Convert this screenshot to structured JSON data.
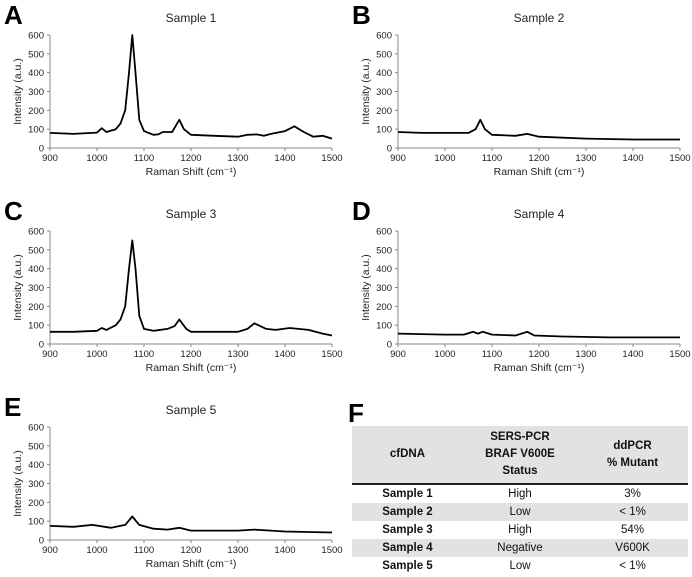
{
  "chart_data": [
    {
      "panel": "A",
      "type": "line",
      "title": "Sample 1",
      "xlabel": "Raman Shift (cm⁻¹)",
      "ylabel": "Intensity (a.u.)",
      "xlim": [
        900,
        1500
      ],
      "ylim": [
        0,
        600
      ],
      "xticks": [
        900,
        1000,
        1100,
        1200,
        1300,
        1400,
        1500
      ],
      "yticks": [
        0,
        100,
        200,
        300,
        400,
        500,
        600
      ],
      "x": [
        900,
        950,
        990,
        1000,
        1010,
        1020,
        1040,
        1050,
        1060,
        1068,
        1075,
        1082,
        1090,
        1100,
        1120,
        1130,
        1140,
        1160,
        1168,
        1175,
        1185,
        1200,
        1250,
        1300,
        1320,
        1340,
        1355,
        1370,
        1400,
        1420,
        1440,
        1460,
        1480,
        1500
      ],
      "y": [
        80,
        75,
        80,
        82,
        105,
        85,
        100,
        130,
        200,
        400,
        600,
        400,
        150,
        90,
        70,
        72,
        85,
        85,
        120,
        150,
        100,
        70,
        65,
        60,
        70,
        72,
        65,
        75,
        90,
        115,
        85,
        60,
        65,
        50
      ]
    },
    {
      "panel": "B",
      "type": "line",
      "title": "Sample 2",
      "xlabel": "Raman Shift (cm⁻¹)",
      "ylabel": "Intensity (a.u.)",
      "xlim": [
        900,
        1500
      ],
      "ylim": [
        0,
        600
      ],
      "xticks": [
        900,
        1000,
        1100,
        1200,
        1300,
        1400,
        1500
      ],
      "yticks": [
        0,
        100,
        200,
        300,
        400,
        500,
        600
      ],
      "x": [
        900,
        950,
        1000,
        1050,
        1065,
        1075,
        1085,
        1100,
        1150,
        1175,
        1200,
        1300,
        1400,
        1500
      ],
      "y": [
        85,
        80,
        80,
        80,
        100,
        150,
        100,
        70,
        65,
        75,
        60,
        50,
        45,
        45
      ]
    },
    {
      "panel": "C",
      "type": "line",
      "title": "Sample 3",
      "xlabel": "Raman Shift (cm⁻¹)",
      "ylabel": "Intensity (a.u.)",
      "xlim": [
        900,
        1500
      ],
      "ylim": [
        0,
        600
      ],
      "xticks": [
        900,
        1000,
        1100,
        1200,
        1300,
        1400,
        1500
      ],
      "yticks": [
        0,
        100,
        200,
        300,
        400,
        500,
        600
      ],
      "x": [
        900,
        950,
        1000,
        1010,
        1020,
        1040,
        1050,
        1060,
        1068,
        1075,
        1082,
        1090,
        1100,
        1120,
        1150,
        1165,
        1175,
        1190,
        1200,
        1300,
        1320,
        1335,
        1360,
        1380,
        1410,
        1450,
        1480,
        1500
      ],
      "y": [
        65,
        65,
        70,
        85,
        75,
        100,
        130,
        200,
        400,
        550,
        400,
        150,
        80,
        70,
        80,
        95,
        130,
        80,
        65,
        65,
        80,
        110,
        80,
        75,
        85,
        75,
        55,
        45
      ]
    },
    {
      "panel": "D",
      "type": "line",
      "title": "Sample 4",
      "xlabel": "Raman Shift (cm⁻¹)",
      "ylabel": "Intensity (a.u.)",
      "xlim": [
        900,
        1500
      ],
      "ylim": [
        0,
        600
      ],
      "xticks": [
        900,
        1000,
        1100,
        1200,
        1300,
        1400,
        1500
      ],
      "yticks": [
        0,
        100,
        200,
        300,
        400,
        500,
        600
      ],
      "x": [
        900,
        1000,
        1040,
        1060,
        1070,
        1080,
        1100,
        1150,
        1175,
        1190,
        1250,
        1350,
        1500
      ],
      "y": [
        55,
        50,
        50,
        65,
        55,
        65,
        50,
        45,
        65,
        45,
        40,
        35,
        35
      ]
    },
    {
      "panel": "E",
      "type": "line",
      "title": "Sample 5",
      "xlabel": "Raman Shift (cm⁻¹)",
      "ylabel": "Intensity (a.u.)",
      "xlim": [
        900,
        1500
      ],
      "ylim": [
        0,
        600
      ],
      "xticks": [
        900,
        1000,
        1100,
        1200,
        1300,
        1400,
        1500
      ],
      "yticks": [
        0,
        100,
        200,
        300,
        400,
        500,
        600
      ],
      "x": [
        900,
        950,
        990,
        1030,
        1060,
        1075,
        1090,
        1120,
        1150,
        1175,
        1200,
        1300,
        1335,
        1400,
        1500
      ],
      "y": [
        75,
        70,
        80,
        65,
        80,
        125,
        80,
        60,
        55,
        65,
        50,
        50,
        55,
        45,
        40
      ]
    }
  ],
  "table": {
    "panel": "F",
    "headers": [
      "cfDNA",
      "SERS-PCR BRAF V600E Status",
      "ddPCR % Mutant"
    ],
    "header_lines": [
      [
        "cfDNA"
      ],
      [
        "SERS-PCR",
        "BRAF V600E",
        "Status"
      ],
      [
        "ddPCR",
        "% Mutant"
      ]
    ],
    "rows": [
      [
        "Sample 1",
        "High",
        "3%"
      ],
      [
        "Sample 2",
        "Low",
        "< 1%"
      ],
      [
        "Sample 3",
        "High",
        "54%"
      ],
      [
        "Sample 4",
        "Negative",
        "V600K"
      ],
      [
        "Sample 5",
        "Low",
        "< 1%"
      ]
    ]
  }
}
